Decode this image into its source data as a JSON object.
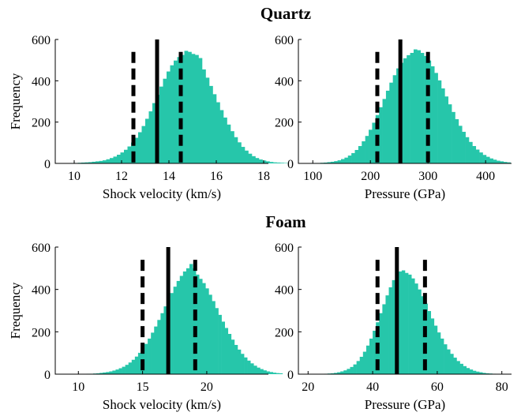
{
  "colors": {
    "bar": "#26c6aa",
    "mean_line": "#000000",
    "interval_line": "#000000",
    "axis": "#000000"
  },
  "chart_data": [
    {
      "type": "bar",
      "group_title": "Quartz",
      "xlabel": "Shock velocity (km/s)",
      "ylabel": "Frequency",
      "xlim": [
        9.2,
        18.2
      ],
      "ylim": [
        0,
        600
      ],
      "xticks": [
        10,
        12,
        14,
        16,
        18
      ],
      "yticks": [
        0,
        200,
        400,
        600
      ],
      "bin_start": 9.7,
      "bin_width": 0.15,
      "values": [
        1,
        2,
        2,
        3,
        4,
        5,
        6,
        8,
        10,
        12,
        15,
        20,
        26,
        33,
        42,
        53,
        66,
        82,
        101,
        124,
        151,
        181,
        216,
        252,
        292,
        332,
        372,
        410,
        445,
        475,
        498,
        515,
        525,
        545,
        540,
        530,
        525,
        510,
        455,
        415,
        375,
        335,
        296,
        258,
        222,
        188,
        156,
        127,
        102,
        80,
        62,
        47,
        35,
        26,
        19,
        14,
        10,
        7,
        5,
        4,
        3,
        2
      ],
      "mean": 13.5,
      "interval": [
        12.5,
        14.5
      ]
    },
    {
      "type": "bar",
      "group_title": "",
      "xlabel": "Pressure (GPa)",
      "ylabel": "",
      "xlim": [
        75,
        445
      ],
      "ylim": [
        0,
        600
      ],
      "xticks": [
        100,
        200,
        300,
        400
      ],
      "yticks": [
        0,
        200,
        400,
        600
      ],
      "bin_start": 95,
      "bin_width": 6,
      "values": [
        1,
        2,
        2,
        3,
        4,
        6,
        8,
        11,
        15,
        21,
        28,
        38,
        50,
        65,
        84,
        107,
        133,
        163,
        197,
        234,
        272,
        312,
        352,
        391,
        427,
        460,
        487,
        509,
        524,
        535,
        552,
        548,
        535,
        520,
        498,
        470,
        438,
        402,
        363,
        324,
        286,
        249,
        214,
        182,
        153,
        127,
        104,
        84,
        67,
        53,
        41,
        32,
        24,
        18,
        13,
        10,
        7,
        5
      ],
      "mean": 252,
      "interval": [
        212,
        300
      ]
    },
    {
      "type": "bar",
      "group_title": "Foam",
      "xlabel": "Shock velocity (km/s)",
      "ylabel": "Frequency",
      "xlim": [
        8.2,
        24.8
      ],
      "ylim": [
        0,
        600
      ],
      "xticks": [
        10,
        15,
        20
      ],
      "yticks": [
        0,
        200,
        400,
        600
      ],
      "bin_start": 10.4,
      "bin_width": 0.25,
      "values": [
        1,
        2,
        2,
        3,
        4,
        6,
        8,
        10,
        13,
        17,
        22,
        28,
        35,
        44,
        55,
        68,
        83,
        101,
        121,
        143,
        168,
        196,
        225,
        256,
        288,
        320,
        352,
        383,
        413,
        440,
        464,
        485,
        500,
        520,
        500,
        470,
        450,
        430,
        405,
        375,
        345,
        312,
        280,
        248,
        218,
        190,
        163,
        138,
        116,
        96,
        79,
        64,
        51,
        40,
        31,
        24,
        18,
        13,
        10,
        7,
        5,
        4
      ],
      "mean": 17,
      "interval": [
        15,
        19.1
      ]
    },
    {
      "type": "bar",
      "group_title": "",
      "xlabel": "Pressure (GPa)",
      "ylabel": "",
      "xlim": [
        17,
        83
      ],
      "ylim": [
        0,
        600
      ],
      "xticks": [
        20,
        40,
        60,
        80
      ],
      "yticks": [
        0,
        200,
        400,
        600
      ],
      "bin_start": 24,
      "bin_width": 1,
      "values": [
        1,
        2,
        3,
        4,
        6,
        9,
        13,
        18,
        25,
        34,
        46,
        62,
        82,
        106,
        135,
        168,
        205,
        245,
        288,
        330,
        372,
        410,
        444,
        470,
        485,
        490,
        478,
        470,
        452,
        428,
        400,
        368,
        333,
        298,
        263,
        229,
        197,
        168,
        141,
        117,
        96,
        78,
        62,
        49,
        38,
        29,
        22,
        16,
        12,
        9,
        6,
        4,
        3,
        2,
        1
      ],
      "mean": 47.5,
      "interval": [
        41.5,
        56.2
      ]
    }
  ]
}
